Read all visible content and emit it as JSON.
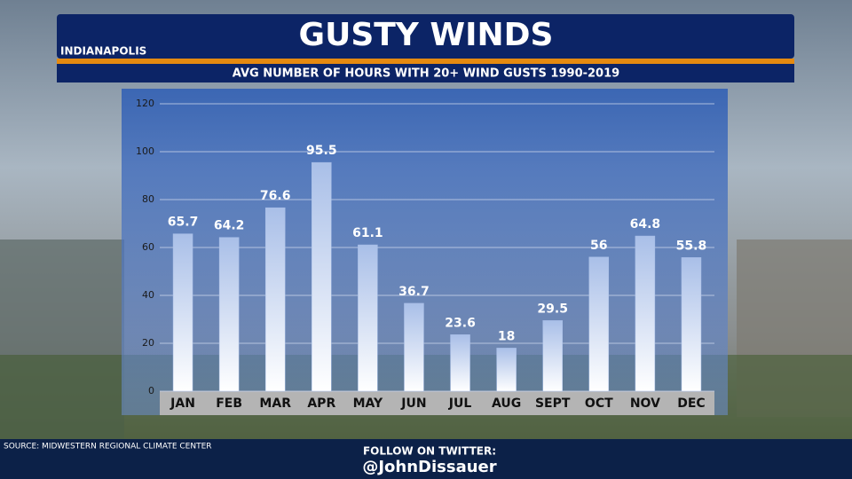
{
  "chart_data": {
    "type": "bar",
    "location": "INDIANAPOLIS",
    "title": "GUSTY WINDS",
    "subtitle": "AVG NUMBER OF HOURS WITH 20+ WIND GUSTS 1990-2019",
    "source": "SOURCE: MIDWESTERN REGIONAL CLIMATE CENTER",
    "follow": "FOLLOW ON TWITTER:",
    "handle": "@JohnDissauer",
    "categories": [
      "JAN",
      "FEB",
      "MAR",
      "APR",
      "MAY",
      "JUN",
      "JUL",
      "AUG",
      "SEPT",
      "OCT",
      "NOV",
      "DEC"
    ],
    "values": [
      65.7,
      64.2,
      76.6,
      95.5,
      61.1,
      36.7,
      23.6,
      18,
      29.5,
      56,
      64.8,
      55.8
    ],
    "color": "#a9bfe8",
    "ylim": [
      0,
      120
    ],
    "yticks": [
      0,
      20,
      40,
      60,
      80,
      100,
      120
    ],
    "grid": true
  }
}
